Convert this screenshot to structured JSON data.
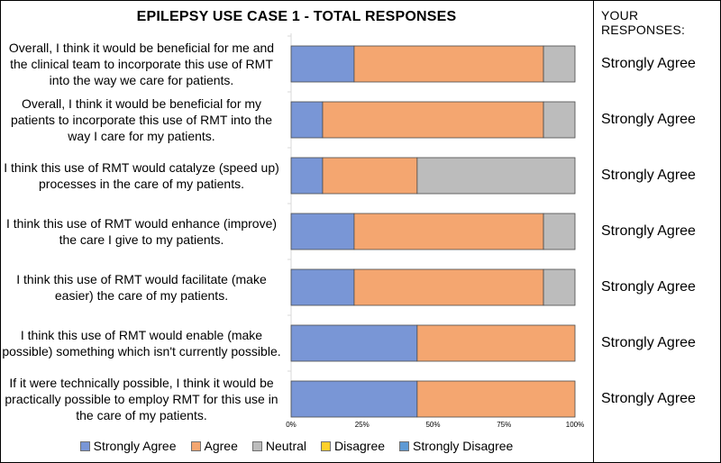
{
  "chart_data": {
    "type": "bar",
    "orientation": "horizontal",
    "stacked": true,
    "title": "EPILEPSY USE CASE 1 - TOTAL RESPONSES",
    "categories": [
      "Overall, I think it would be beneficial for me and the clinical team to incorporate this use of RMT into the way we care for patients.",
      "Overall, I think it would be beneficial for my patients to incorporate this use of RMT into the way I care for my patients.",
      "I think this use of RMT would catalyze (speed up) processes in the care of my patients.",
      "I think this use of RMT would enhance (improve) the care I give to my patients.",
      "I think this use of RMT would facilitate (make easier) the care of my patients.",
      "I think this use of RMT would enable (make possible) something which isn't currently possible.",
      "If it were technically possible, I think it would be practically possible to employ RMT for this use in the care of my patients."
    ],
    "series": [
      {
        "name": "Strongly Agree",
        "color": "#7996d6",
        "values": [
          22.2,
          11.1,
          11.1,
          22.2,
          22.2,
          44.4,
          44.4
        ]
      },
      {
        "name": "Agree",
        "color": "#f4a670",
        "values": [
          66.7,
          77.8,
          33.3,
          66.7,
          66.7,
          55.6,
          55.6
        ]
      },
      {
        "name": "Neutral",
        "color": "#bcbcbc",
        "values": [
          11.1,
          11.1,
          55.6,
          11.1,
          11.1,
          0,
          0
        ]
      },
      {
        "name": "Disagree",
        "color": "#ffd02a",
        "values": [
          0,
          0,
          0,
          0,
          0,
          0,
          0
        ]
      },
      {
        "name": "Strongly Disagree",
        "color": "#5f9ad4",
        "values": [
          0,
          0,
          0,
          0,
          0,
          0,
          0
        ]
      }
    ],
    "xlim": [
      0,
      100
    ],
    "xticks": [
      "0%",
      "25%",
      "50%",
      "75%",
      "100%"
    ],
    "legend": "bottom",
    "grid": false
  },
  "responses_panel": {
    "title": "YOUR RESPONSES:",
    "responses": [
      "Strongly Agree",
      "Strongly Agree",
      "Strongly Agree",
      "Strongly Agree",
      "Strongly Agree",
      "Strongly Agree",
      "Strongly Agree"
    ]
  }
}
